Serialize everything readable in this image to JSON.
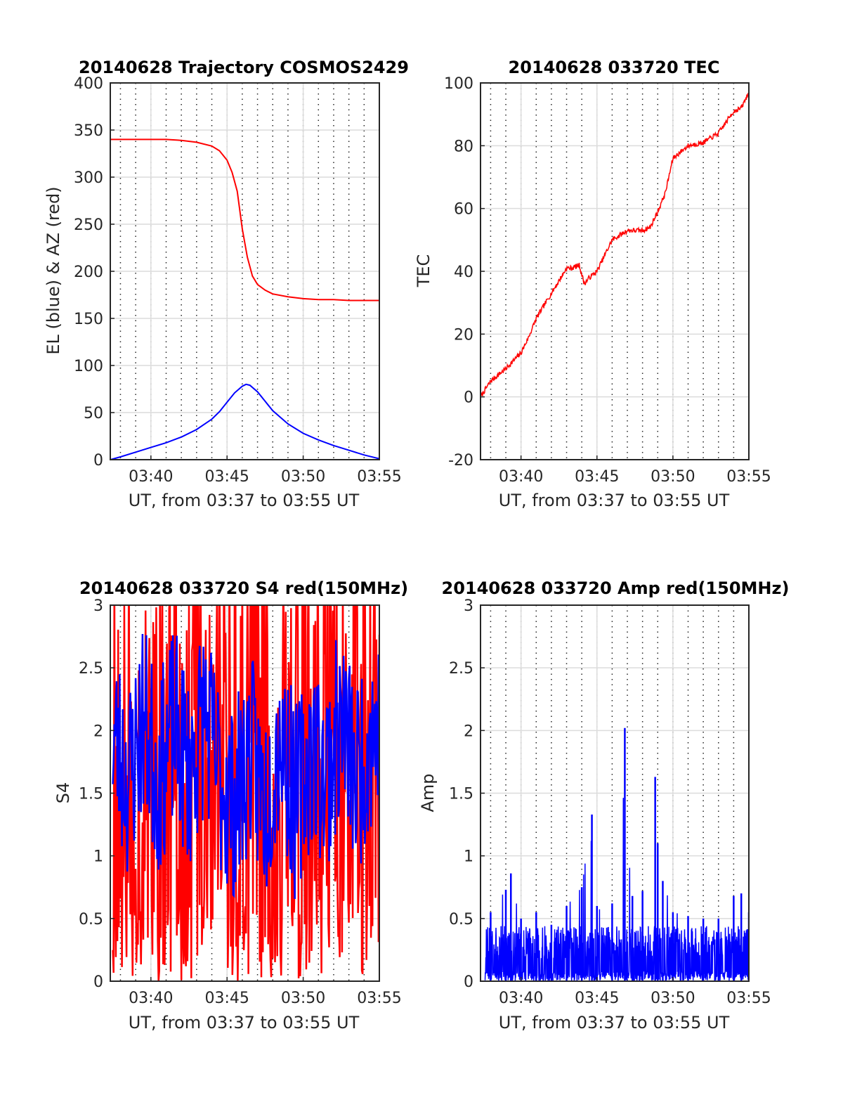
{
  "chart_data": [
    {
      "type": "line",
      "title": "20140628 Trajectory COSMOS2429",
      "xlabel": "UT, from 03:37 to 03:55 UT",
      "ylabel": "EL (blue) & AZ (red)",
      "xlim": [
        "03:37:20",
        "03:55:00"
      ],
      "ylim": [
        0,
        400
      ],
      "xticks": [
        "03:40",
        "03:45",
        "03:50",
        "03:55"
      ],
      "yticks": [
        0,
        50,
        100,
        150,
        200,
        250,
        300,
        350,
        400
      ],
      "grid": true,
      "series": [
        {
          "color": "#ff0000",
          "x": [
            "03:37:20",
            "03:38:00",
            "03:39:00",
            "03:40:00",
            "03:41:00",
            "03:42:00",
            "03:43:00",
            "03:44:00",
            "03:44:30",
            "03:45:00",
            "03:45:20",
            "03:45:40",
            "03:46:00",
            "03:46:20",
            "03:46:40",
            "03:47:00",
            "03:47:30",
            "03:48:00",
            "03:49:00",
            "03:50:00",
            "03:51:00",
            "03:52:00",
            "03:53:00",
            "03:54:00",
            "03:55:00"
          ],
          "values": [
            340,
            340,
            340,
            340,
            340,
            339,
            337,
            333,
            328,
            318,
            305,
            285,
            245,
            215,
            195,
            186,
            180,
            176,
            173,
            171,
            170,
            170,
            169,
            169,
            169
          ]
        },
        {
          "color": "#0000ff",
          "x": [
            "03:37:20",
            "03:38:00",
            "03:39:00",
            "03:40:00",
            "03:41:00",
            "03:42:00",
            "03:43:00",
            "03:44:00",
            "03:44:30",
            "03:45:00",
            "03:45:30",
            "03:46:00",
            "03:46:15",
            "03:46:30",
            "03:47:00",
            "03:47:30",
            "03:48:00",
            "03:49:00",
            "03:50:00",
            "03:51:00",
            "03:52:00",
            "03:53:00",
            "03:54:00",
            "03:55:00"
          ],
          "values": [
            0,
            3,
            8,
            13,
            18,
            24,
            32,
            43,
            51,
            61,
            71,
            78,
            80,
            79,
            72,
            62,
            52,
            38,
            28,
            21,
            15,
            10,
            5,
            1
          ]
        }
      ]
    },
    {
      "type": "line",
      "title": "20140628 033720 TEC",
      "xlabel": "UT, from 03:37 to 03:55 UT",
      "ylabel": "TEC",
      "xlim": [
        "03:37:20",
        "03:55:00"
      ],
      "ylim": [
        -20,
        100
      ],
      "xticks": [
        "03:40",
        "03:45",
        "03:50",
        "03:55"
      ],
      "yticks": [
        -20,
        0,
        20,
        40,
        60,
        80,
        100
      ],
      "grid": true,
      "series": [
        {
          "color": "#ff0000",
          "x": [
            "03:37:20",
            "03:38:00",
            "03:39:00",
            "03:40:00",
            "03:40:30",
            "03:41:00",
            "03:42:00",
            "03:43:00",
            "03:43:20",
            "03:43:50",
            "03:44:10",
            "03:44:30",
            "03:45:00",
            "03:45:30",
            "03:46:00",
            "03:47:00",
            "03:48:00",
            "03:48:30",
            "03:49:00",
            "03:49:30",
            "03:50:00",
            "03:50:30",
            "03:51:00",
            "03:52:00",
            "03:53:00",
            "03:54:00",
            "03:54:30",
            "03:55:00"
          ],
          "values": [
            0,
            5,
            9,
            14,
            19,
            25,
            33,
            41,
            41,
            42,
            36,
            38,
            40,
            45,
            50,
            53,
            53,
            54,
            59,
            65,
            76,
            78,
            80,
            81,
            84,
            91,
            92,
            97
          ]
        }
      ]
    },
    {
      "type": "line",
      "title": "20140628 033720 S4 red(150MHz)",
      "xlabel": "UT, from 03:37 to 03:55 UT",
      "ylabel": "S4",
      "xlim": [
        "03:37:20",
        "03:55:00"
      ],
      "ylim": [
        0,
        3
      ],
      "xticks": [
        "03:40",
        "03:45",
        "03:50",
        "03:55"
      ],
      "yticks": [
        0,
        0.5,
        1,
        1.5,
        2,
        2.5,
        3
      ],
      "grid": true,
      "series": [
        {
          "color": "#ff0000",
          "x": [
            "03:37:30",
            "03:38:30",
            "03:39:30",
            "03:40:30",
            "03:41:30",
            "03:42:30",
            "03:43:30",
            "03:44:30",
            "03:45:30",
            "03:46:30",
            "03:47:30",
            "03:48:30",
            "03:49:30",
            "03:50:30",
            "03:51:30",
            "03:52:30",
            "03:53:30",
            "03:54:30"
          ],
          "values": [
            3,
            0,
            3,
            0,
            3,
            0,
            3,
            0.2,
            3,
            1.5,
            3,
            0,
            3,
            0,
            3,
            0.3,
            3,
            1.0
          ]
        },
        {
          "color": "#0000ff",
          "x": [
            "03:37:30",
            "03:38:30",
            "03:39:30",
            "03:40:30",
            "03:41:30",
            "03:42:30",
            "03:43:30",
            "03:44:30",
            "03:45:30",
            "03:46:30",
            "03:47:30",
            "03:48:30",
            "03:49:30",
            "03:50:30",
            "03:51:30",
            "03:52:30",
            "03:53:30",
            "03:54:30"
          ],
          "values": [
            2.4,
            1.1,
            2.8,
            1.2,
            2.6,
            1.3,
            2.9,
            1.2,
            0.5,
            2.0,
            0.5,
            2.5,
            0.5,
            2.0,
            1.3,
            2.7,
            1.2,
            2.5
          ]
        }
      ]
    },
    {
      "type": "line",
      "title": "20140628 033720 Amp red(150MHz)",
      "xlabel": "UT, from 03:37 to 03:55 UT",
      "ylabel": "Amp",
      "xlim": [
        "03:37:20",
        "03:55:00"
      ],
      "ylim": [
        0,
        3
      ],
      "xticks": [
        "03:40",
        "03:45",
        "03:50",
        "03:55"
      ],
      "yticks": [
        0,
        0.5,
        1,
        1.5,
        2,
        2.5,
        3
      ],
      "grid": true,
      "series": [
        {
          "color": "#0000ff",
          "x": [
            "03:38:00",
            "03:39:00",
            "03:39:20",
            "03:40:00",
            "03:41:00",
            "03:42:00",
            "03:43:00",
            "03:44:00",
            "03:44:40",
            "03:45:00",
            "03:46:00",
            "03:46:50",
            "03:47:20",
            "03:48:00",
            "03:48:50",
            "03:49:00",
            "03:49:20",
            "03:50:00",
            "03:51:00",
            "03:52:00",
            "03:53:00",
            "03:54:00",
            "03:54:30",
            "03:55:00"
          ],
          "values": [
            0.55,
            0.73,
            0.86,
            0.5,
            0.55,
            0.45,
            0.6,
            0.75,
            1.33,
            0.6,
            0.62,
            2.02,
            0.68,
            0.72,
            1.63,
            1.1,
            0.8,
            0.55,
            0.52,
            0.5,
            0.5,
            0.68,
            0.7,
            0.55
          ]
        }
      ]
    }
  ]
}
